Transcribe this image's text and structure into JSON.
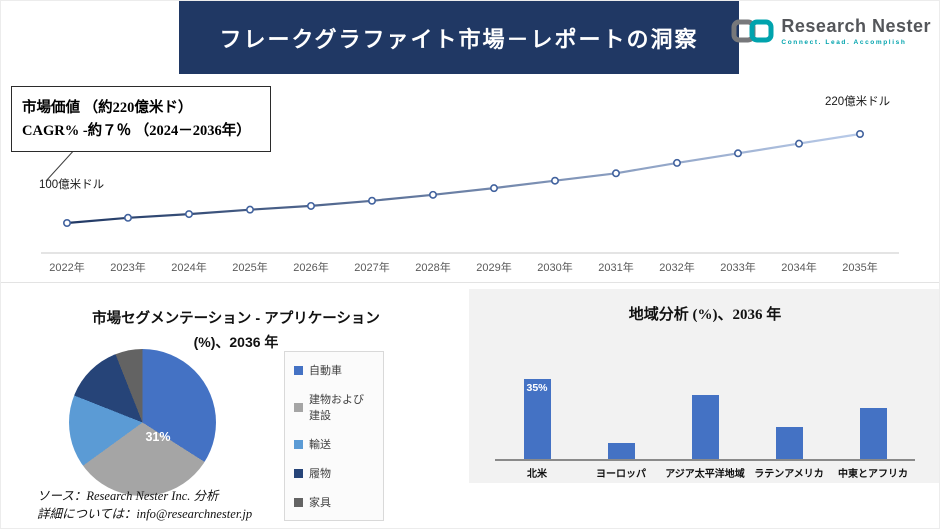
{
  "header": {
    "title": "フレークグラファイト市場－レポートの洞察"
  },
  "logo": {
    "brand": "Research Nester",
    "tagline": "Connect. Lead. Accomplish"
  },
  "info_box": {
    "line1": "市場価値 （約220億米ド）",
    "line2": "CAGR% -約７％ （2024－2036年）"
  },
  "footer": {
    "source": "ソース：Research Nester Inc. 分析",
    "details": "詳細については：info@researchnester.jp"
  },
  "colors": {
    "accent_navy": "#203864",
    "bar_blue": "#4472c4",
    "panel_gray": "#f2f2f2",
    "logo_teal": "#00a3ad"
  },
  "chart_data": [
    {
      "type": "line",
      "x": [
        "2022年",
        "2023年",
        "2024年",
        "2025年",
        "2026年",
        "2027年",
        "2028年",
        "2029年",
        "2030年",
        "2031年",
        "2032年",
        "2033年",
        "2034年",
        "2035年"
      ],
      "values": [
        100,
        107,
        112,
        118,
        123,
        130,
        138,
        147,
        157,
        167,
        181,
        194,
        207,
        220
      ],
      "unit": "億米ドル",
      "start_label": "100億米ドル",
      "end_label": "220億米ドル",
      "ylim": [
        100,
        220
      ],
      "line_gradient": [
        "#203864",
        "#b9cbe9"
      ]
    },
    {
      "type": "pie",
      "title_line1": "市場セグメンテーション - アプリケーション",
      "title_line2": "(%)、2036 年",
      "labels": [
        "自動車",
        "建物および建設",
        "輸送",
        "履物",
        "家具"
      ],
      "values": [
        34,
        31,
        16,
        13,
        6
      ],
      "colors": [
        "#4472c4",
        "#a5a5a5",
        "#5b9bd5",
        "#264478",
        "#636363"
      ],
      "data_label": "31%",
      "legend_position": "right"
    },
    {
      "type": "bar",
      "title": "地域分析 (%)、2036 年",
      "categories": [
        "北米",
        "ヨーロッパ",
        "アジア太平洋地域",
        "ラテンアメリカ",
        "中東とアフリカ"
      ],
      "values": [
        35,
        7,
        28,
        14,
        22
      ],
      "data_labels": [
        "35%",
        "",
        "",
        "",
        ""
      ],
      "bar_color": "#4472c4",
      "ylim": [
        0,
        45
      ]
    }
  ]
}
